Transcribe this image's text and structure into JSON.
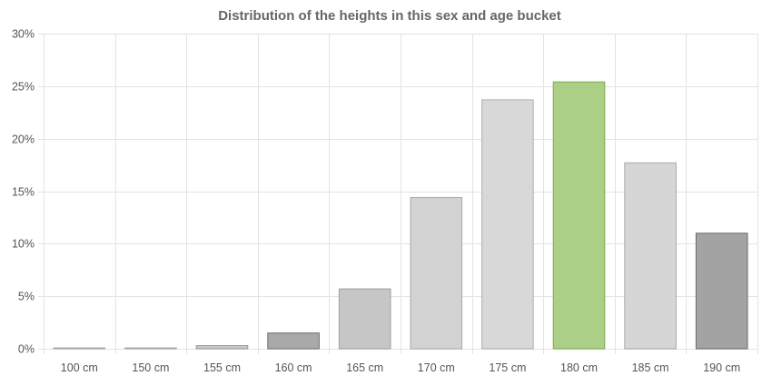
{
  "chart_data": {
    "type": "bar",
    "title": "Distribution of the heights in this sex and age bucket",
    "categories": [
      "100 cm",
      "150 cm",
      "155 cm",
      "160 cm",
      "165 cm",
      "170 cm",
      "175 cm",
      "180 cm",
      "185 cm",
      "190 cm"
    ],
    "values": [
      0.05,
      0.05,
      0.3,
      1.5,
      5.7,
      14.4,
      23.7,
      25.4,
      17.7,
      11.0
    ],
    "y_tick_labels": [
      "0%",
      "5%",
      "10%",
      "15%",
      "20%",
      "25%",
      "30%"
    ],
    "y_ticks": [
      0,
      5,
      10,
      15,
      20,
      25,
      30
    ],
    "ylim": [
      0,
      30
    ],
    "grid": true,
    "bar_fills": [
      "#d9d9d9",
      "#d9d9d9",
      "#c8c8c8",
      "#a9a9a9",
      "#c6c6c6",
      "#d2d2d2",
      "#d8d8d8",
      "#abcf86",
      "#d6d6d6",
      "#a3a3a3"
    ],
    "bar_strokes": [
      "#aaaaaa",
      "#aaaaaa",
      "#999999",
      "#6e6e6e",
      "#a0a0a0",
      "#aaaaaa",
      "#b0b0b0",
      "#7aaa48",
      "#aaaaaa",
      "#6a6a6a"
    ],
    "grid_color": "#e3e3e3"
  }
}
